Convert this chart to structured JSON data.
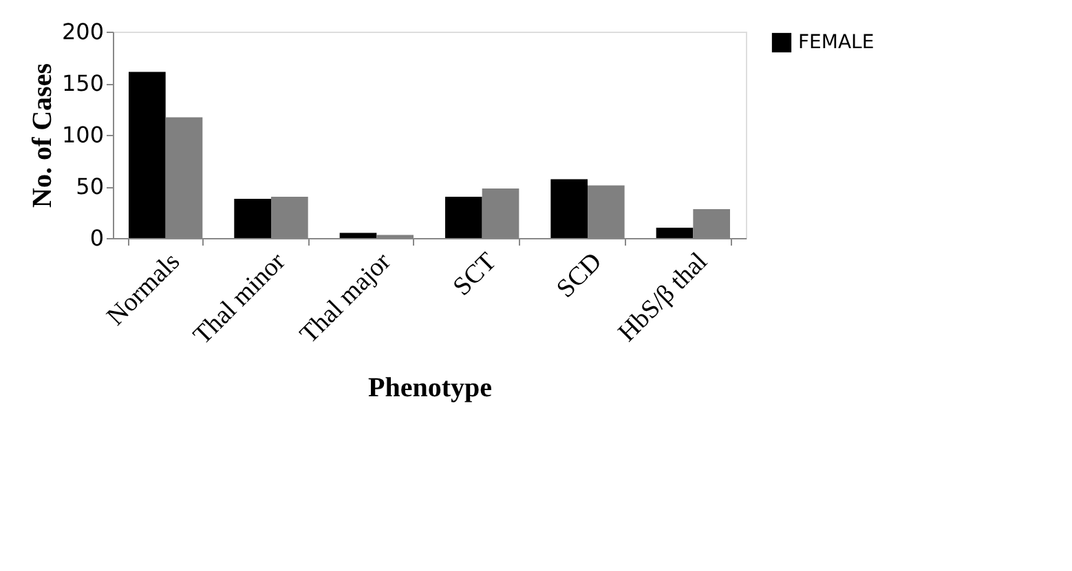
{
  "chart_data": {
    "type": "bar",
    "xlabel": "Phenotype",
    "ylabel": "No. of Cases",
    "categories": [
      "Normals",
      "Thal minor",
      "Thal major",
      "SCT",
      "SCD",
      "HbS/β thal"
    ],
    "series": [
      {
        "name": "FEMALE",
        "color": "#000000",
        "values": [
          161,
          38,
          5,
          40,
          57,
          10
        ]
      },
      {
        "color": "#808080",
        "values": [
          117,
          40,
          3,
          48,
          51,
          28
        ]
      }
    ],
    "ylim": [
      0,
      200
    ],
    "yticks": [
      0,
      50,
      100,
      150,
      200
    ],
    "grid": false,
    "legend": "right"
  }
}
